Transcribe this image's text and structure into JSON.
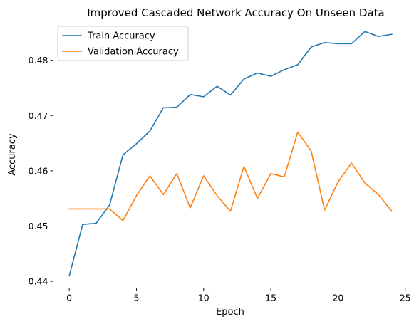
{
  "chart_data": {
    "type": "line",
    "title": "Improved Cascaded Network Accuracy On Unseen Data",
    "xlabel": "Epoch",
    "ylabel": "Accuracy",
    "xlim": [
      -1.2,
      25.2
    ],
    "ylim": [
      0.4388,
      0.4871
    ],
    "xticks": [
      0,
      5,
      10,
      15,
      20,
      25
    ],
    "yticks": [
      0.44,
      0.45,
      0.46,
      0.47,
      0.48
    ],
    "xtick_labels": [
      "0",
      "5",
      "10",
      "15",
      "20",
      "25"
    ],
    "ytick_labels": [
      "0.44",
      "0.45",
      "0.46",
      "0.47",
      "0.48"
    ],
    "grid": false,
    "legend_position": "top-left",
    "x": [
      0,
      1,
      2,
      3,
      4,
      5,
      6,
      7,
      8,
      9,
      10,
      11,
      12,
      13,
      14,
      15,
      16,
      17,
      18,
      19,
      20,
      21,
      22,
      23,
      24
    ],
    "series": [
      {
        "name": "Train Accuracy",
        "color": "#1f77b4",
        "values": [
          0.441,
          0.4503,
          0.4505,
          0.4538,
          0.4629,
          0.4649,
          0.4672,
          0.4714,
          0.4715,
          0.4738,
          0.4734,
          0.4753,
          0.4737,
          0.4766,
          0.4777,
          0.4771,
          0.4783,
          0.4792,
          0.4824,
          0.4832,
          0.483,
          0.483,
          0.4852,
          0.4843,
          0.4847
        ]
      },
      {
        "name": "Validation Accuracy",
        "color": "#ff7f0e",
        "values": [
          0.4531,
          0.4531,
          0.4531,
          0.4531,
          0.451,
          0.4555,
          0.4591,
          0.4557,
          0.4595,
          0.4533,
          0.4591,
          0.4555,
          0.4527,
          0.4608,
          0.455,
          0.4595,
          0.4589,
          0.467,
          0.4636,
          0.4529,
          0.458,
          0.4614,
          0.4578,
          0.4557,
          0.4527
        ]
      }
    ]
  }
}
